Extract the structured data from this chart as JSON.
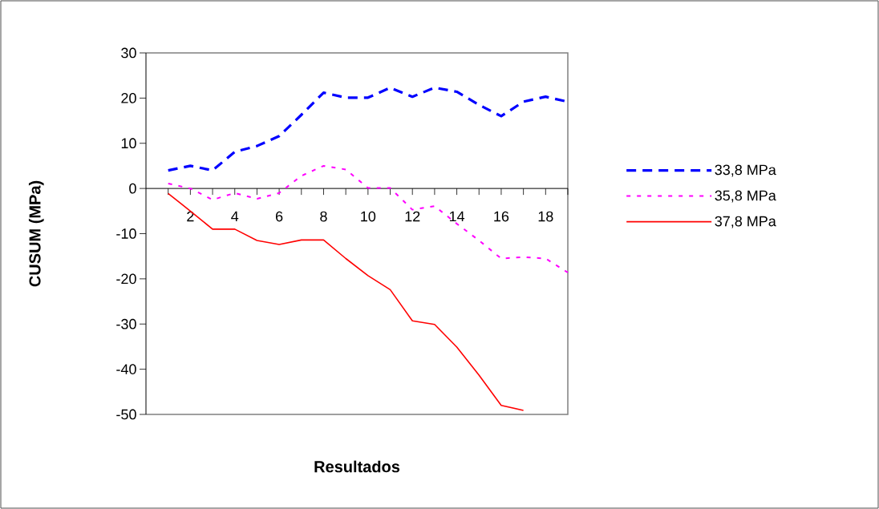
{
  "chart_data": {
    "type": "line",
    "xlabel": "Resultados",
    "ylabel": "CUSUM (MPa)",
    "x": [
      1,
      2,
      3,
      4,
      5,
      6,
      7,
      8,
      9,
      10,
      11,
      12,
      13,
      14,
      15,
      16,
      17,
      18,
      19
    ],
    "series": [
      {
        "name": "33,8 MPa",
        "color": "#0000ff",
        "line_style": "dashed",
        "values": [
          4.0,
          5.0,
          4.0,
          8.1,
          9.4,
          11.6,
          16.3,
          21.2,
          20.1,
          20.1,
          22.3,
          20.3,
          22.3,
          21.4,
          18.5,
          16.0,
          19.2,
          20.3,
          19.2
        ]
      },
      {
        "name": "35,8 MPa",
        "color": "#ff00ff",
        "line_style": "dotted",
        "values": [
          1.1,
          0.0,
          -2.5,
          -1.0,
          -2.3,
          -1.0,
          2.8,
          5.0,
          4.2,
          0.1,
          0.1,
          -4.7,
          -3.9,
          -7.8,
          -11.5,
          -15.5,
          -15.2,
          -15.5,
          -18.6
        ]
      },
      {
        "name": "37,8 MPa",
        "color": "#ff0000",
        "line_style": "solid",
        "values": [
          -1.1,
          -5.0,
          -9.0,
          -9.0,
          -11.5,
          -12.4,
          -11.4,
          -11.4,
          -15.5,
          -19.3,
          -22.4,
          -29.3,
          -30.1,
          -35.1,
          -41.3,
          -48.0,
          -49.1,
          null,
          null
        ]
      }
    ],
    "xlim": [
      0,
      19
    ],
    "xticks": [
      {
        "value": 1,
        "label": null
      },
      2,
      {
        "value": 3,
        "label": null
      },
      4,
      {
        "value": 5,
        "label": null
      },
      6,
      {
        "value": 7,
        "label": null
      },
      8,
      {
        "value": 9,
        "label": null
      },
      10,
      {
        "value": 11,
        "label": null
      },
      12,
      {
        "value": 13,
        "label": null
      },
      14,
      {
        "value": 15,
        "label": null
      },
      16,
      {
        "value": 17,
        "label": null
      },
      18,
      {
        "value": 19,
        "label": null
      }
    ],
    "ylim": [
      -50,
      30
    ],
    "yticks": [
      -50,
      -40,
      -30,
      -20,
      -10,
      0,
      10,
      20,
      30
    ],
    "grid": false,
    "legend": "right"
  }
}
